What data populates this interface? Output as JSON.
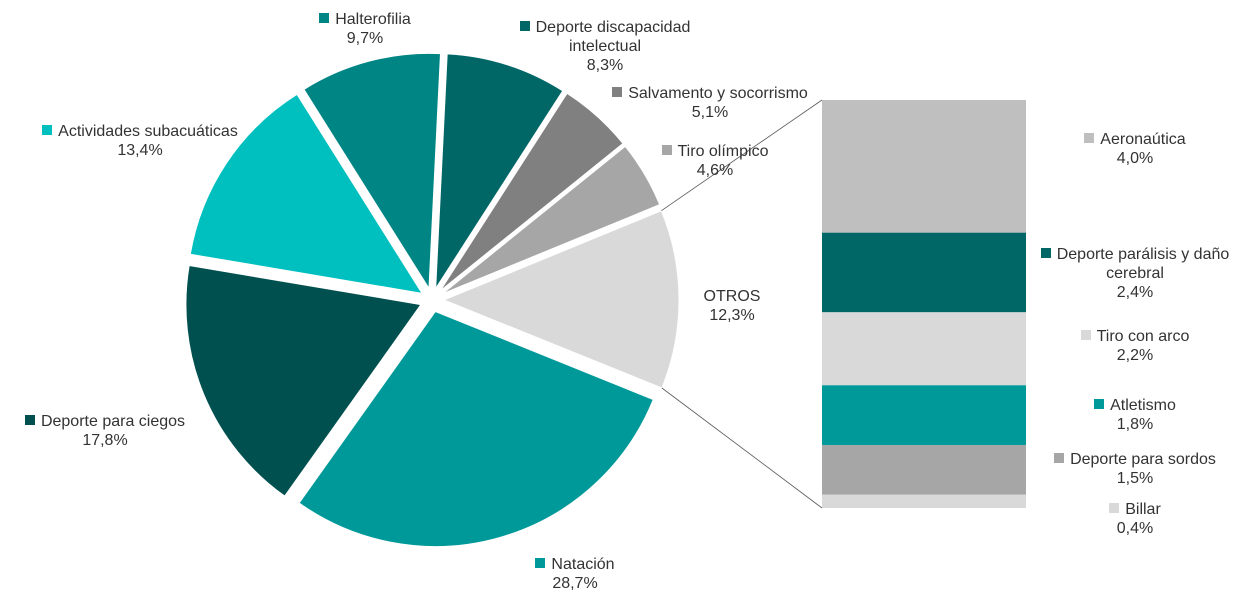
{
  "chart_data": {
    "type": "pie",
    "categories": [
      "Natación",
      "Deporte para ciegos",
      "Actividades subacuáticas",
      "Halterofilia",
      "Deporte discapacidad intelectual",
      "Salvamento y socorrismo",
      "Tiro olímpico",
      "OTROS"
    ],
    "values": [
      28.7,
      17.8,
      13.4,
      9.7,
      8.3,
      5.1,
      4.6,
      12.3
    ],
    "value_labels": [
      "28,7%",
      "17,8%",
      "13,4%",
      "9,7%",
      "8,3%",
      "5,1%",
      "4,6%",
      "12,3%"
    ],
    "colors": [
      "#009999",
      "#00504f",
      "#00bfbf",
      "#008585",
      "#006666",
      "#808080",
      "#a6a6a6",
      "#d9d9d9"
    ],
    "breakdown": {
      "type": "bar",
      "categories": [
        "Aeronaútica",
        "Deporte parálisis y daño cerebral",
        "Tiro con arco",
        "Atletismo",
        "Deporte para sordos",
        "Billar"
      ],
      "values": [
        4.0,
        2.4,
        2.2,
        1.8,
        1.5,
        0.4
      ],
      "value_labels": [
        "4,0%",
        "2,4%",
        "2,2%",
        "1,8%",
        "1,5%",
        "0,4%"
      ],
      "colors": [
        "#bfbfbf",
        "#006666",
        "#d9d9d9",
        "#009999",
        "#a6a6a6",
        "#d9d9d9"
      ]
    }
  }
}
